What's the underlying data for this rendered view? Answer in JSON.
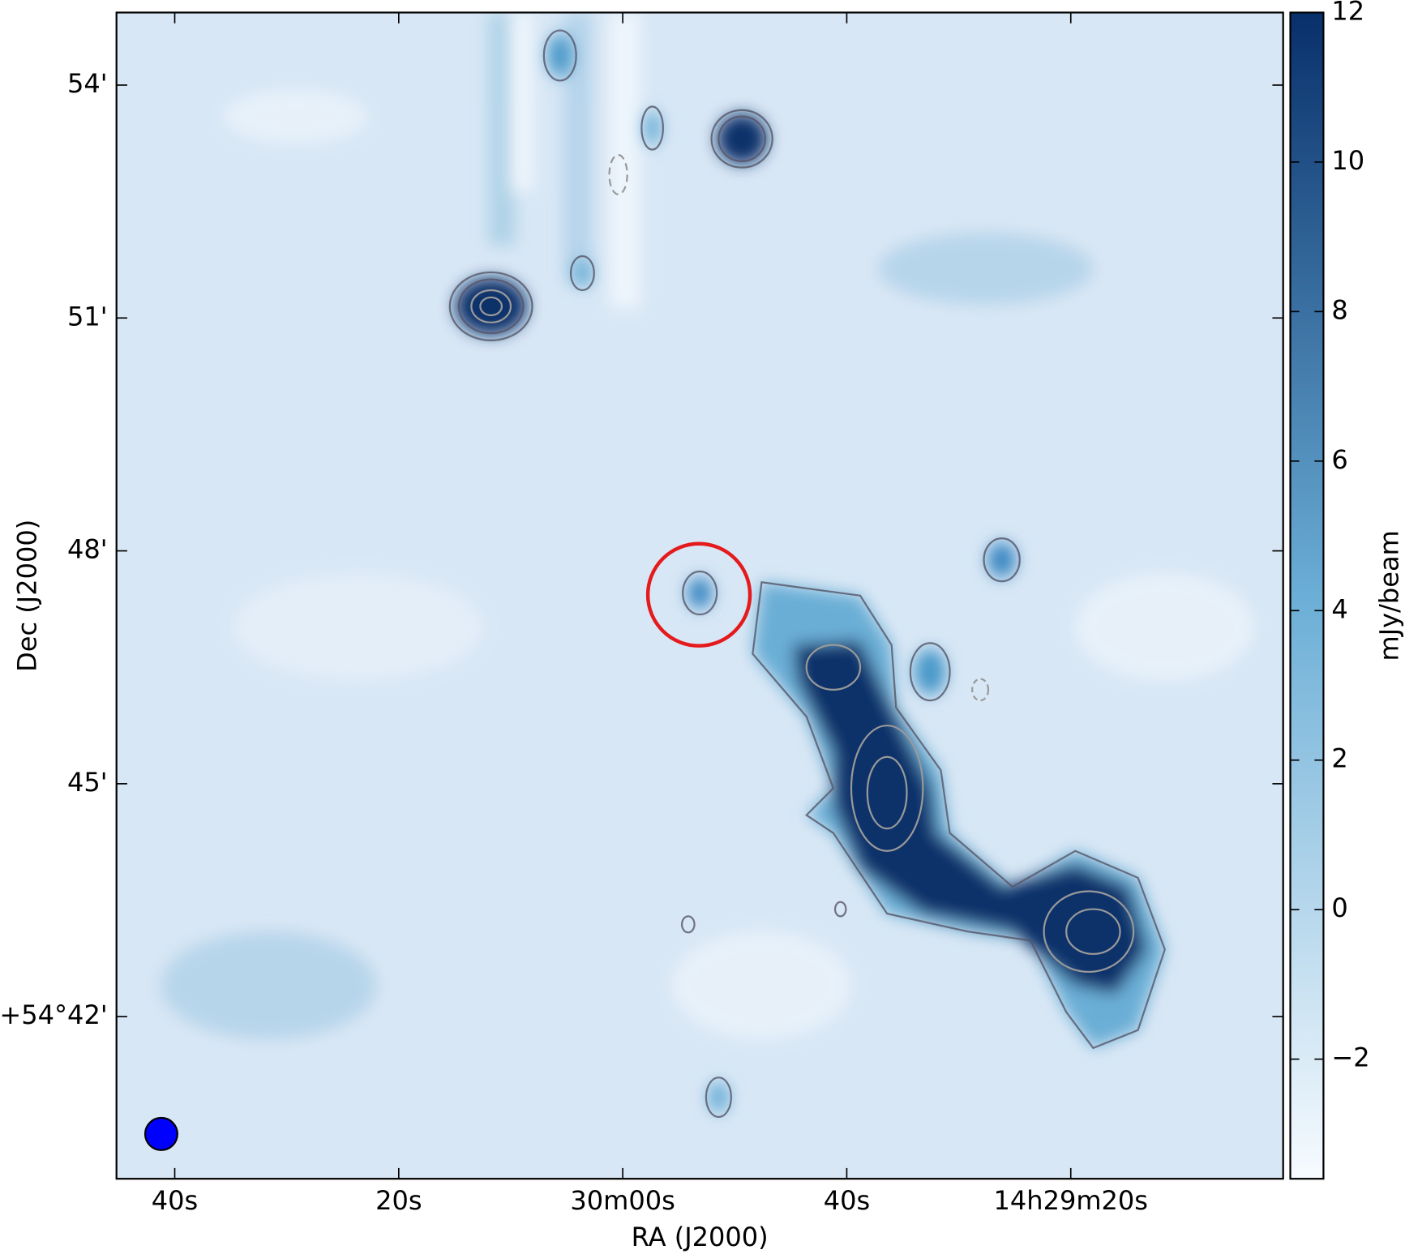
{
  "chart_data": {
    "type": "image",
    "xlabel": "RA (J2000)",
    "ylabel": "Dec (J2000)",
    "xticks": [
      "40s",
      "20s",
      "30m00s",
      "40s",
      "14h29m20s"
    ],
    "yticks": [
      "54'",
      "51'",
      "48'",
      "45'",
      "+54°42'"
    ],
    "colorbar": {
      "label": "mJy/beam",
      "lim": [
        -3.6,
        12
      ],
      "ticks": [
        {
          "value": -2,
          "label": "−2"
        },
        0,
        2,
        4,
        6,
        8,
        10,
        12
      ],
      "cmap": [
        "#f7fbff",
        "#08306b"
      ]
    }
  }
}
